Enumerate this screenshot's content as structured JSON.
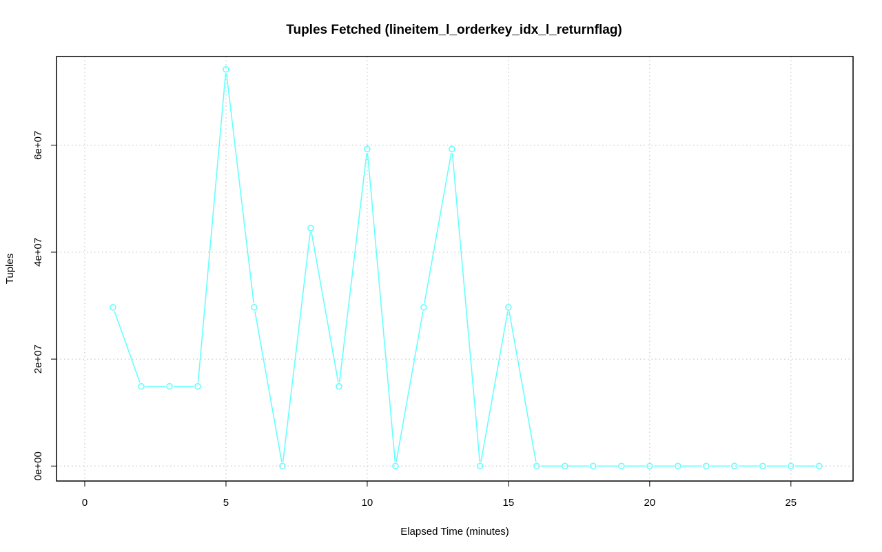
{
  "chart_data": {
    "type": "line",
    "title": "Tuples Fetched (lineitem_l_orderkey_idx_l_returnflag)",
    "xlabel": "Elapsed Time (minutes)",
    "ylabel": "Tuples",
    "xlim": [
      -1,
      27.2
    ],
    "ylim": [
      -2800000,
      76600000
    ],
    "x_ticks": [
      0,
      5,
      10,
      15,
      20,
      25
    ],
    "x_tick_labels": [
      "0",
      "5",
      "10",
      "15",
      "20",
      "25"
    ],
    "y_ticks": [
      0,
      20000000,
      40000000,
      60000000
    ],
    "y_tick_labels": [
      "0e+00",
      "2e+07",
      "4e+07",
      "6e+07"
    ],
    "grid": true,
    "legend": "none",
    "series": [
      {
        "color": "#66ffff",
        "marker": "open-circle",
        "x": [
          1,
          2,
          3,
          4,
          5,
          6,
          7,
          8,
          9,
          10,
          11,
          12,
          13,
          14,
          15,
          16,
          17,
          18,
          19,
          20,
          21,
          22,
          23,
          24,
          25,
          26
        ],
        "y": [
          29700000,
          14900000,
          14900000,
          14900000,
          74200000,
          29700000,
          0,
          44500000,
          14900000,
          59300000,
          0,
          29700000,
          59300000,
          0,
          29700000,
          0,
          0,
          0,
          0,
          0,
          0,
          0,
          0,
          0,
          0,
          0
        ]
      }
    ]
  }
}
